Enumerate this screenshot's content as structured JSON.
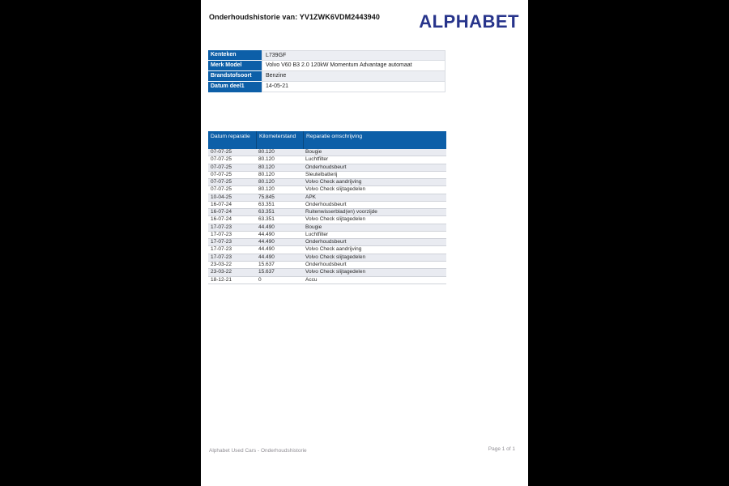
{
  "header": {
    "title": "Onderhoudshistorie van: YV1ZWK6VDM2443940",
    "logo_text": "ALPHABET"
  },
  "vehicle_info": {
    "rows": [
      {
        "label": "Kenteken",
        "value": "L739GF"
      },
      {
        "label": "Merk Model",
        "value": "Volvo V60 B3 2.0 120kW Momentum Advantage automaat"
      },
      {
        "label": "Brandstofsoort",
        "value": "Benzine"
      },
      {
        "label": "Datum deel1",
        "value": "14-05-21"
      }
    ]
  },
  "maintenance_table": {
    "columns": [
      "Datum reparatie",
      "Kilometerstand",
      "Reparatie omschrijving"
    ],
    "rows": [
      [
        "07-07-25",
        "80.120",
        "Bougie"
      ],
      [
        "07-07-25",
        "80.120",
        "Luchtfilter"
      ],
      [
        "07-07-25",
        "80.120",
        "Onderhoudsbeurt"
      ],
      [
        "07-07-25",
        "80.120",
        "Sleutelbatterij"
      ],
      [
        "07-07-25",
        "80.120",
        "Volvo Check aandrijving"
      ],
      [
        "07-07-25",
        "80.120",
        "Volvo Check slijtagedelen"
      ],
      [
        "10-04-25",
        "75.845",
        "APK"
      ],
      [
        "16-07-24",
        "63.351",
        "Onderhoudsbeurt"
      ],
      [
        "16-07-24",
        "63.351",
        "Ruitenwisserblad(en) voorzijde"
      ],
      [
        "16-07-24",
        "63.351",
        "Volvo Check slijtagedelen"
      ],
      [
        "17-07-23",
        "44.490",
        "Bougie"
      ],
      [
        "17-07-23",
        "44.490",
        "Luchtfilter"
      ],
      [
        "17-07-23",
        "44.490",
        "Onderhoudsbeurt"
      ],
      [
        "17-07-23",
        "44.490",
        "Volvo Check aandrijving"
      ],
      [
        "17-07-23",
        "44.490",
        "Volvo Check slijtagedelen"
      ],
      [
        "23-03-22",
        "15.637",
        "Onderhoudsbeurt"
      ],
      [
        "23-03-22",
        "15.637",
        "Volvo Check slijtagedelen"
      ],
      [
        "18-12-21",
        "0",
        "Accu"
      ]
    ]
  },
  "footer": {
    "left_text": "Alphabet  Used Cars - Onderhoudshistorie",
    "right_text": "Page 1 of 1"
  },
  "colors": {
    "table_blue": "#0d5fa8",
    "logo_navy": "#27348b",
    "row_alt": "#e9ebf1",
    "row_border": "#cfd2d9",
    "footer_gray": "#908e94",
    "viewer_background": "#000000"
  }
}
